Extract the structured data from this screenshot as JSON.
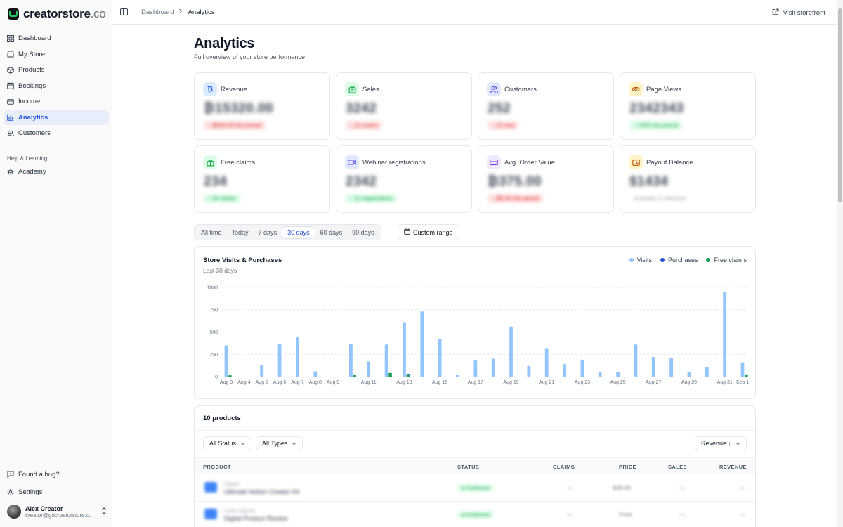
{
  "brand": {
    "name": "creatorstore",
    "tld": ".co"
  },
  "sidebar": {
    "items": [
      {
        "label": "Dashboard",
        "icon": "grid-icon",
        "active": false
      },
      {
        "label": "My Store",
        "icon": "store-icon",
        "active": false
      },
      {
        "label": "Products",
        "icon": "box-icon",
        "active": false
      },
      {
        "label": "Bookings",
        "icon": "calendar-icon",
        "active": false
      },
      {
        "label": "Income",
        "icon": "wallet-icon",
        "active": false
      },
      {
        "label": "Analytics",
        "icon": "bar-chart-icon",
        "active": true
      },
      {
        "label": "Customers",
        "icon": "users-icon",
        "active": false
      }
    ],
    "section_label": "Help & Learning",
    "academy_label": "Academy",
    "bug_label": "Found a bug?",
    "settings_label": "Settings",
    "user": {
      "name": "Alex Creator",
      "email": "creator@gocreatorstore.c..."
    }
  },
  "topbar": {
    "breadcrumb_parent": "Dashboard",
    "breadcrumb_current": "Analytics",
    "visit_label": "Visit storefront"
  },
  "page": {
    "title": "Analytics",
    "subtitle": "Full overview of your store performance."
  },
  "stats": [
    {
      "label": "Revenue",
      "value": "₿15320.00",
      "badge": "↓ ₿659.00 this period",
      "badge_tone": "red",
      "icon": "currency-icon",
      "color": "#2563eb",
      "bg": "#dbeafe"
    },
    {
      "label": "Sales",
      "value": "3242",
      "badge": "↓ 12 orders",
      "badge_tone": "red",
      "icon": "shopping-bag-icon",
      "color": "#16a34a",
      "bg": "#dcfce7"
    },
    {
      "label": "Customers",
      "value": "252",
      "badge": "↓ 12 new",
      "badge_tone": "red",
      "icon": "users-icon",
      "color": "#4f46e5",
      "bg": "#e0e7ff"
    },
    {
      "label": "Page Views",
      "value": "2342343",
      "badge": "↑ 2345 this period",
      "badge_tone": "green",
      "icon": "eye-icon",
      "color": "#b45309",
      "bg": "#fef3c7"
    },
    {
      "label": "Free claims",
      "value": "234",
      "badge": "↑ 34 claims",
      "badge_tone": "green",
      "icon": "gift-icon",
      "color": "#16a34a",
      "bg": "#dcfce7"
    },
    {
      "label": "Webinar registrations",
      "value": "2342",
      "badge": "↑ 12 registrations",
      "badge_tone": "green",
      "icon": "video-icon",
      "color": "#4f46e5",
      "bg": "#e0e7ff"
    },
    {
      "label": "Avg. Order Value",
      "value": "₿375.00",
      "badge": "↓ ₿5.00 this period",
      "badge_tone": "red",
      "icon": "credit-card-icon",
      "color": "#7c3aed",
      "bg": "#ede9fe"
    },
    {
      "label": "Payout Balance",
      "value": "$1434",
      "badge": "Available to withdraw",
      "badge_tone": "plain",
      "icon": "wallet-icon",
      "color": "#b45309",
      "bg": "#fef3c7"
    }
  ],
  "ranges": {
    "options": [
      "All time",
      "Today",
      "7 days",
      "30 days",
      "60 days",
      "90 days"
    ],
    "selected": "30 days",
    "custom_label": "Custom range"
  },
  "chart_data": {
    "type": "bar",
    "title": "Store Visits & Purchases",
    "subtitle": "Last 30 days",
    "xlabel": "",
    "ylabel": "",
    "ylim": [
      0,
      1000
    ],
    "yticks": [
      0,
      250,
      500,
      750,
      1000
    ],
    "grid": true,
    "legend_position": "top-right",
    "categories": [
      "Aug 3",
      "Aug 4",
      "Aug 5",
      "Aug 6",
      "Aug 7",
      "Aug 8",
      "Aug 9",
      "Aug 10",
      "Aug 11",
      "Aug 12",
      "Aug 13",
      "Aug 14",
      "Aug 15",
      "Aug 16",
      "Aug 17",
      "Aug 18",
      "Aug 19",
      "Aug 20",
      "Aug 21",
      "Aug 22",
      "Aug 23",
      "Aug 24",
      "Aug 25",
      "Aug 26",
      "Aug 27",
      "Aug 28",
      "Aug 29",
      "Aug 30",
      "Aug 31",
      "Sep 1"
    ],
    "tick_labels": [
      "Aug 3",
      "Aug 4",
      "Aug 5",
      "Aug 6",
      "Aug 7",
      "Aug 8",
      "Aug 9",
      "",
      "Aug 11",
      "",
      "Aug 13",
      "",
      "Aug 15",
      "",
      "Aug 17",
      "",
      "Aug 19",
      "",
      "Aug 21",
      "",
      "Aug 23",
      "",
      "Aug 25",
      "",
      "Aug 27",
      "",
      "Aug 29",
      "",
      "Aug 31",
      "Sep 1"
    ],
    "series": [
      {
        "name": "Visits",
        "color": "#93c5fd",
        "values": [
          350,
          0,
          130,
          370,
          440,
          60,
          0,
          370,
          170,
          360,
          610,
          730,
          420,
          20,
          180,
          200,
          560,
          120,
          320,
          140,
          190,
          50,
          50,
          360,
          220,
          210,
          50,
          110,
          950,
          160
        ]
      },
      {
        "name": "Purchases",
        "color": "#1d4ed8",
        "values": [
          0,
          0,
          0,
          0,
          0,
          0,
          0,
          0,
          0,
          40,
          30,
          0,
          0,
          0,
          0,
          0,
          0,
          0,
          0,
          0,
          0,
          0,
          0,
          0,
          0,
          0,
          0,
          0,
          0,
          0
        ]
      },
      {
        "name": "Free claims",
        "color": "#16a34a",
        "values": [
          15,
          0,
          0,
          0,
          0,
          0,
          0,
          15,
          0,
          40,
          25,
          0,
          0,
          0,
          0,
          0,
          0,
          0,
          0,
          0,
          0,
          0,
          0,
          0,
          0,
          0,
          0,
          0,
          0,
          25
        ]
      }
    ]
  },
  "products": {
    "count_label": "10 products",
    "status_filter": "All Status",
    "type_filter": "All Types",
    "sort_label": "Revenue ↓",
    "columns": [
      "PRODUCT",
      "STATUS",
      "CLAIMS",
      "PRICE",
      "SALES",
      "REVENUE"
    ],
    "rows": [
      {
        "type": "Digital",
        "name": "Ultimate Notion Creator Kit",
        "status": "● Published",
        "claims": "—",
        "price": "$39.00",
        "sales": "—",
        "revenue": "—"
      },
      {
        "type": "Lead magnet",
        "name": "Digital Product Review",
        "status": "● Published",
        "claims": "—",
        "price": "Free",
        "sales": "—",
        "revenue": "—"
      }
    ]
  }
}
